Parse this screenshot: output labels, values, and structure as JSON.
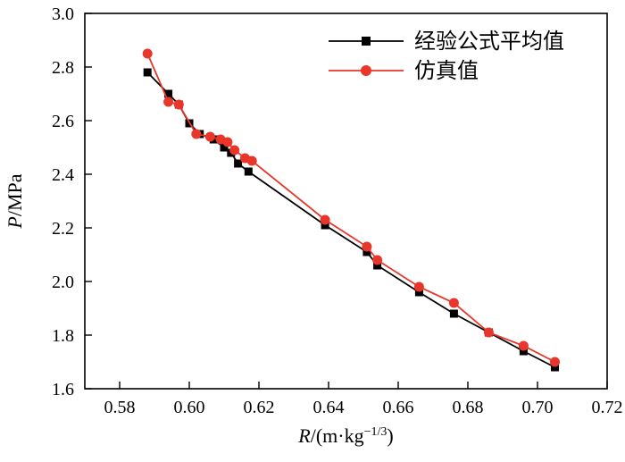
{
  "chart_data": {
    "type": "line",
    "title": "",
    "grid": false,
    "legend_position": "top-right-inside",
    "xlabel": {
      "var": "R",
      "unit": "/(m·kg",
      "sup": "−1/3",
      "close": ")"
    },
    "ylabel": {
      "var": "P",
      "unit": "/MPa"
    },
    "xlim": [
      0.57,
      0.72
    ],
    "ylim": [
      1.6,
      3.0
    ],
    "xticks": {
      "values": [
        0.58,
        0.6,
        0.62,
        0.64,
        0.66,
        0.68,
        0.7,
        0.72
      ],
      "labels": [
        "0.58",
        "0.60",
        "0.62",
        "0.64",
        "0.66",
        "0.68",
        "0.70",
        "0.72"
      ]
    },
    "yticks": {
      "values": [
        1.6,
        1.8,
        2.0,
        2.2,
        2.4,
        2.6,
        2.8,
        3.0
      ],
      "labels": [
        "1.6",
        "1.8",
        "2.0",
        "2.2",
        "2.4",
        "2.6",
        "2.8",
        "3.0"
      ]
    },
    "series": [
      {
        "name": "经验公式平均值",
        "color": "#000000",
        "marker": "square",
        "points": [
          [
            0.588,
            2.78
          ],
          [
            0.594,
            2.7
          ],
          [
            0.597,
            2.66
          ],
          [
            0.6,
            2.59
          ],
          [
            0.603,
            2.55
          ],
          [
            0.607,
            2.53
          ],
          [
            0.61,
            2.5
          ],
          [
            0.612,
            2.48
          ],
          [
            0.614,
            2.44
          ],
          [
            0.617,
            2.41
          ],
          [
            0.639,
            2.21
          ],
          [
            0.651,
            2.11
          ],
          [
            0.654,
            2.06
          ],
          [
            0.666,
            1.96
          ],
          [
            0.676,
            1.88
          ],
          [
            0.686,
            1.81
          ],
          [
            0.696,
            1.74
          ],
          [
            0.705,
            1.68
          ]
        ]
      },
      {
        "name": "仿真值",
        "color": "#e8362a",
        "marker": "circle",
        "points": [
          [
            0.588,
            2.85
          ],
          [
            0.594,
            2.67
          ],
          [
            0.597,
            2.66
          ],
          [
            0.602,
            2.55
          ],
          [
            0.606,
            2.54
          ],
          [
            0.609,
            2.53
          ],
          [
            0.611,
            2.52
          ],
          [
            0.613,
            2.49
          ],
          [
            0.616,
            2.46
          ],
          [
            0.618,
            2.45
          ],
          [
            0.639,
            2.23
          ],
          [
            0.651,
            2.13
          ],
          [
            0.654,
            2.08
          ],
          [
            0.666,
            1.98
          ],
          [
            0.676,
            1.92
          ],
          [
            0.686,
            1.81
          ],
          [
            0.696,
            1.76
          ],
          [
            0.705,
            1.7
          ]
        ]
      }
    ]
  }
}
